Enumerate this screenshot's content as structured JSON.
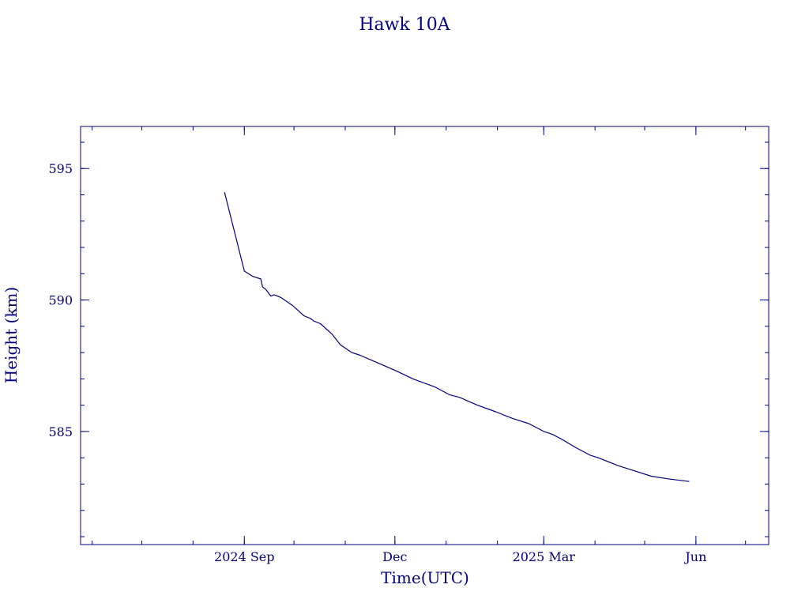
{
  "chart_data": {
    "type": "line",
    "title": "Hawk 10A",
    "xlabel": "Time(UTC)",
    "ylabel": "Height (km)",
    "colors": {
      "axis": "#000080",
      "line": "#000080",
      "text": "#000080"
    },
    "grid": false,
    "legend": "none",
    "xlim": [
      "2024-05-25",
      "2025-07-15"
    ],
    "ylim": [
      580.7,
      596.6
    ],
    "x_ticks": [
      {
        "date": "2024-09-01",
        "label": "2024 Sep"
      },
      {
        "date": "2024-12-01",
        "label": "Dec"
      },
      {
        "date": "2025-03-01",
        "label": "2025 Mar"
      },
      {
        "date": "2025-06-01",
        "label": "Jun"
      }
    ],
    "y_ticks": [
      {
        "value": 585,
        "label": "585"
      },
      {
        "value": 590,
        "label": "590"
      },
      {
        "value": 595,
        "label": "595"
      }
    ],
    "series": [
      {
        "x": [
          "2024-08-20",
          "2024-09-01",
          "2024-09-06",
          "2024-09-11",
          "2024-09-12",
          "2024-09-14",
          "2024-09-17",
          "2024-09-19",
          "2024-09-23",
          "2024-09-30",
          "2024-10-07",
          "2024-10-11",
          "2024-10-13",
          "2024-10-17",
          "2024-10-24",
          "2024-10-29",
          "2024-11-05",
          "2024-11-10",
          "2024-11-21",
          "2024-12-02",
          "2024-12-12",
          "2024-12-25",
          "2025-01-03",
          "2025-01-09",
          "2025-01-20",
          "2025-01-31",
          "2025-02-10",
          "2025-02-20",
          "2025-03-01",
          "2025-03-06",
          "2025-03-12",
          "2025-03-20",
          "2025-03-29",
          "2025-04-03",
          "2025-04-15",
          "2025-04-25",
          "2025-05-05",
          "2025-05-15",
          "2025-05-28"
        ],
        "y": [
          594.1,
          591.1,
          590.9,
          590.8,
          590.5,
          590.4,
          590.15,
          590.2,
          590.1,
          589.8,
          589.4,
          589.3,
          589.2,
          589.1,
          588.7,
          588.3,
          588.0,
          587.9,
          587.6,
          587.3,
          587.0,
          586.7,
          586.4,
          586.3,
          586.0,
          585.75,
          585.5,
          585.3,
          585.0,
          584.9,
          584.7,
          584.4,
          584.1,
          584.0,
          583.7,
          583.5,
          583.3,
          583.2,
          583.1
        ]
      }
    ]
  }
}
